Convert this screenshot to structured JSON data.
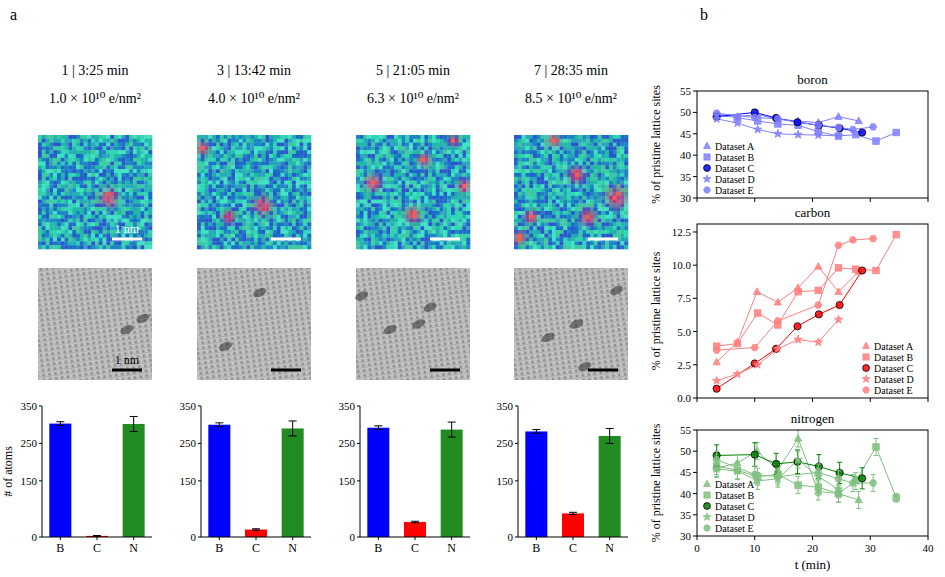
{
  "panel_labels": [
    "a",
    "b"
  ],
  "frames": [
    {
      "title": "1 | 3:25 min",
      "dose": "1.0 × 10¹⁰ e/nm²"
    },
    {
      "title": "3 | 13:42 min",
      "dose": "4.0 × 10¹⁰ e/nm²"
    },
    {
      "title": "5 | 21:05 min",
      "dose": "6.3 × 10¹⁰ e/nm²"
    },
    {
      "title": "7 | 28:35 min",
      "dose": "8.5 × 10¹⁰ e/nm²"
    }
  ],
  "scale_bar": "1 nm",
  "chart_data": [
    {
      "type": "bar",
      "ylabel": "# of atoms",
      "categories": [
        "B",
        "C",
        "N"
      ],
      "values": [
        303,
        3,
        302
      ],
      "errors": [
        5,
        1,
        20
      ],
      "colors": [
        "#0000ff",
        "#ff0000",
        "#228b22"
      ],
      "ylim": [
        0,
        350
      ],
      "yticks": [
        0,
        150,
        250,
        350
      ]
    },
    {
      "type": "bar",
      "categories": [
        "B",
        "C",
        "N"
      ],
      "values": [
        300,
        20,
        290
      ],
      "errors": [
        5,
        2,
        20
      ],
      "colors": [
        "#0000ff",
        "#ff0000",
        "#228b22"
      ],
      "ylim": [
        0,
        350
      ],
      "yticks": [
        0,
        150,
        250,
        350
      ]
    },
    {
      "type": "bar",
      "categories": [
        "B",
        "C",
        "N"
      ],
      "values": [
        292,
        40,
        287
      ],
      "errors": [
        5,
        2,
        20
      ],
      "colors": [
        "#0000ff",
        "#ff0000",
        "#228b22"
      ],
      "ylim": [
        0,
        350
      ],
      "yticks": [
        0,
        150,
        250,
        350
      ]
    },
    {
      "type": "bar",
      "categories": [
        "B",
        "C",
        "N"
      ],
      "values": [
        282,
        63,
        270
      ],
      "errors": [
        5,
        3,
        20
      ],
      "colors": [
        "#0000ff",
        "#ff0000",
        "#228b22"
      ],
      "ylim": [
        0,
        350
      ],
      "yticks": [
        0,
        150,
        250,
        350
      ]
    },
    {
      "type": "line",
      "title": "boron",
      "ylabel": "% of pristine lattice sites",
      "xlim": [
        0,
        40
      ],
      "xticks": [
        0,
        10,
        20,
        30,
        40
      ],
      "ylim": [
        30,
        55
      ],
      "yticks": [
        30,
        35,
        40,
        45,
        50,
        55
      ],
      "legend": "lower left",
      "tick_labels": "y",
      "series": [
        {
          "name": "Dataset A",
          "color": "#8080ff",
          "marker": "triangle",
          "x": [
            3.4,
            7.0,
            10.4,
            14.0,
            17.5,
            21.0,
            24.5,
            28.0
          ],
          "values": [
            49.6,
            49.0,
            49.5,
            48.4,
            48.0,
            47.6,
            49.0,
            48.0
          ]
        },
        {
          "name": "Dataset B",
          "color": "#8080ff",
          "marker": "square",
          "x": [
            3.4,
            7.0,
            10.5,
            14.0,
            17.5,
            21.0,
            24.5,
            27.5,
            31.0,
            34.5
          ],
          "values": [
            49.3,
            48.8,
            48.0,
            47.3,
            47.0,
            45.5,
            44.5,
            44.8,
            43.3,
            45.3
          ]
        },
        {
          "name": "Dataset C",
          "color": "#0000ff",
          "marker": "circle",
          "x": [
            3.4,
            10.0,
            13.7,
            17.4,
            21.1,
            24.7,
            28.6
          ],
          "values": [
            49.0,
            50.0,
            48.7,
            47.7,
            47.0,
            46.3,
            45.3
          ]
        },
        {
          "name": "Dataset D",
          "color": "#8080ff",
          "marker": "star",
          "x": [
            3.4,
            7.0,
            10.5,
            14.0,
            17.5,
            21.0,
            24.5
          ],
          "values": [
            48.5,
            47.5,
            46.0,
            45.0,
            44.8,
            44.7,
            44.5
          ]
        },
        {
          "name": "Dataset E",
          "color": "#8080ff",
          "marker": "hexagon",
          "x": [
            3.4,
            10.0,
            14.0,
            21.0,
            24.5,
            27.0,
            30.5
          ],
          "values": [
            49.8,
            48.8,
            48.5,
            47.0,
            46.5,
            46.0,
            46.6
          ]
        }
      ]
    },
    {
      "type": "line",
      "title": "carbon",
      "ylabel": "% of pristine lattice sites",
      "xlim": [
        0,
        40
      ],
      "xticks": [
        0,
        10,
        20,
        30,
        40
      ],
      "ylim": [
        0,
        13.1
      ],
      "yticks": [
        {
          "value": 0,
          "label": "0.0"
        },
        {
          "value": 2.5,
          "label": "2.5"
        },
        {
          "value": 5,
          "label": "5.0"
        },
        {
          "value": 7.5,
          "label": "7.5"
        },
        {
          "value": 10,
          "label": "10.0"
        },
        {
          "value": 12.5,
          "label": "12.5"
        }
      ],
      "legend": "lower right",
      "tick_labels": "y",
      "series": [
        {
          "name": "Dataset A",
          "color": "#ff8080",
          "marker": "triangle",
          "x": [
            3.4,
            7.0,
            10.4,
            14.0,
            17.5,
            21.0,
            24.5,
            28.0
          ],
          "values": [
            2.7,
            4.2,
            8.0,
            7.2,
            8.3,
            9.9,
            8.0,
            9.5
          ]
        },
        {
          "name": "Dataset B",
          "color": "#ff8080",
          "marker": "square",
          "x": [
            3.4,
            7.0,
            10.5,
            14.0,
            17.5,
            21.0,
            24.5,
            27.5,
            31.0,
            34.5
          ],
          "values": [
            3.9,
            4.1,
            6.4,
            5.5,
            8.0,
            8.1,
            9.8,
            9.7,
            9.6,
            12.3
          ]
        },
        {
          "name": "Dataset C",
          "color": "#ff0000",
          "marker": "circle",
          "x": [
            3.4,
            10.0,
            13.7,
            17.4,
            21.1,
            24.7,
            28.6
          ],
          "values": [
            0.7,
            2.6,
            3.7,
            5.4,
            6.3,
            7.0,
            9.6
          ]
        },
        {
          "name": "Dataset D",
          "color": "#ff8080",
          "marker": "star",
          "x": [
            3.4,
            7.0,
            10.5,
            14.0,
            17.5,
            21.0,
            24.5
          ],
          "values": [
            1.3,
            1.8,
            2.5,
            3.7,
            4.4,
            4.2,
            5.9
          ]
        },
        {
          "name": "Dataset E",
          "color": "#ff8080",
          "marker": "hexagon",
          "x": [
            3.4,
            10.0,
            14.0,
            21.0,
            24.5,
            27.0,
            30.5
          ],
          "values": [
            3.6,
            3.8,
            5.8,
            7.0,
            11.5,
            11.9,
            12.0
          ]
        }
      ]
    },
    {
      "type": "line",
      "title": "nitrogen",
      "ylabel": "% of pristine lattice sites",
      "xlabel": "t (min)",
      "xlim": [
        0,
        40
      ],
      "xticks": [
        0,
        10,
        20,
        30,
        40
      ],
      "ylim": [
        30,
        55
      ],
      "yticks": [
        30,
        35,
        40,
        45,
        50,
        55
      ],
      "legend": "lower left",
      "series": [
        {
          "name": "Dataset A",
          "color": "#80c080",
          "marker": "triangle",
          "x": [
            3.4,
            7.0,
            10.4,
            14.0,
            17.5,
            21.0,
            24.5,
            28.0
          ],
          "values": [
            46.0,
            47.2,
            50.0,
            45.5,
            53.0,
            40.5,
            40.0,
            38.5
          ],
          "errors": [
            2,
            2,
            2,
            2,
            2,
            2,
            2,
            2
          ]
        },
        {
          "name": "Dataset B",
          "color": "#80c080",
          "marker": "square",
          "x": [
            3.4,
            7.0,
            10.5,
            14.0,
            17.5,
            21.0,
            24.5,
            27.5,
            31.0,
            34.5
          ],
          "values": [
            46.5,
            45.5,
            44.0,
            44.5,
            42.0,
            41.5,
            40.0,
            43.0,
            51.0,
            39.0
          ],
          "errors": [
            2,
            2,
            2,
            2,
            2,
            2,
            2,
            2,
            2,
            1
          ]
        },
        {
          "name": "Dataset C",
          "color": "#008000",
          "marker": "circle",
          "x": [
            3.4,
            10.0,
            13.7,
            17.4,
            21.1,
            24.7,
            28.6
          ],
          "values": [
            49.0,
            49.2,
            47.0,
            47.5,
            46.4,
            44.9,
            43.6
          ],
          "errors": [
            2.5,
            2.8,
            2.5,
            2.8,
            2.8,
            2.5,
            2.5
          ]
        },
        {
          "name": "Dataset D",
          "color": "#80c080",
          "marker": "star",
          "x": [
            3.4,
            7.0,
            10.5,
            14.0,
            17.5,
            21.0,
            24.5
          ],
          "values": [
            45.8,
            45.3,
            43.0,
            43.5,
            48.0,
            44.0,
            41.0
          ],
          "errors": [
            2,
            2,
            2,
            2,
            2,
            2,
            2
          ]
        },
        {
          "name": "Dataset E",
          "color": "#80c080",
          "marker": "hexagon",
          "x": [
            3.4,
            10.0,
            14.0,
            21.0,
            24.5,
            27.0,
            30.5
          ],
          "values": [
            48.0,
            44.5,
            44.0,
            45.0,
            43.5,
            42.5,
            42.5
          ],
          "errors": [
            2,
            2,
            2,
            2,
            2,
            2,
            2
          ]
        }
      ]
    }
  ]
}
